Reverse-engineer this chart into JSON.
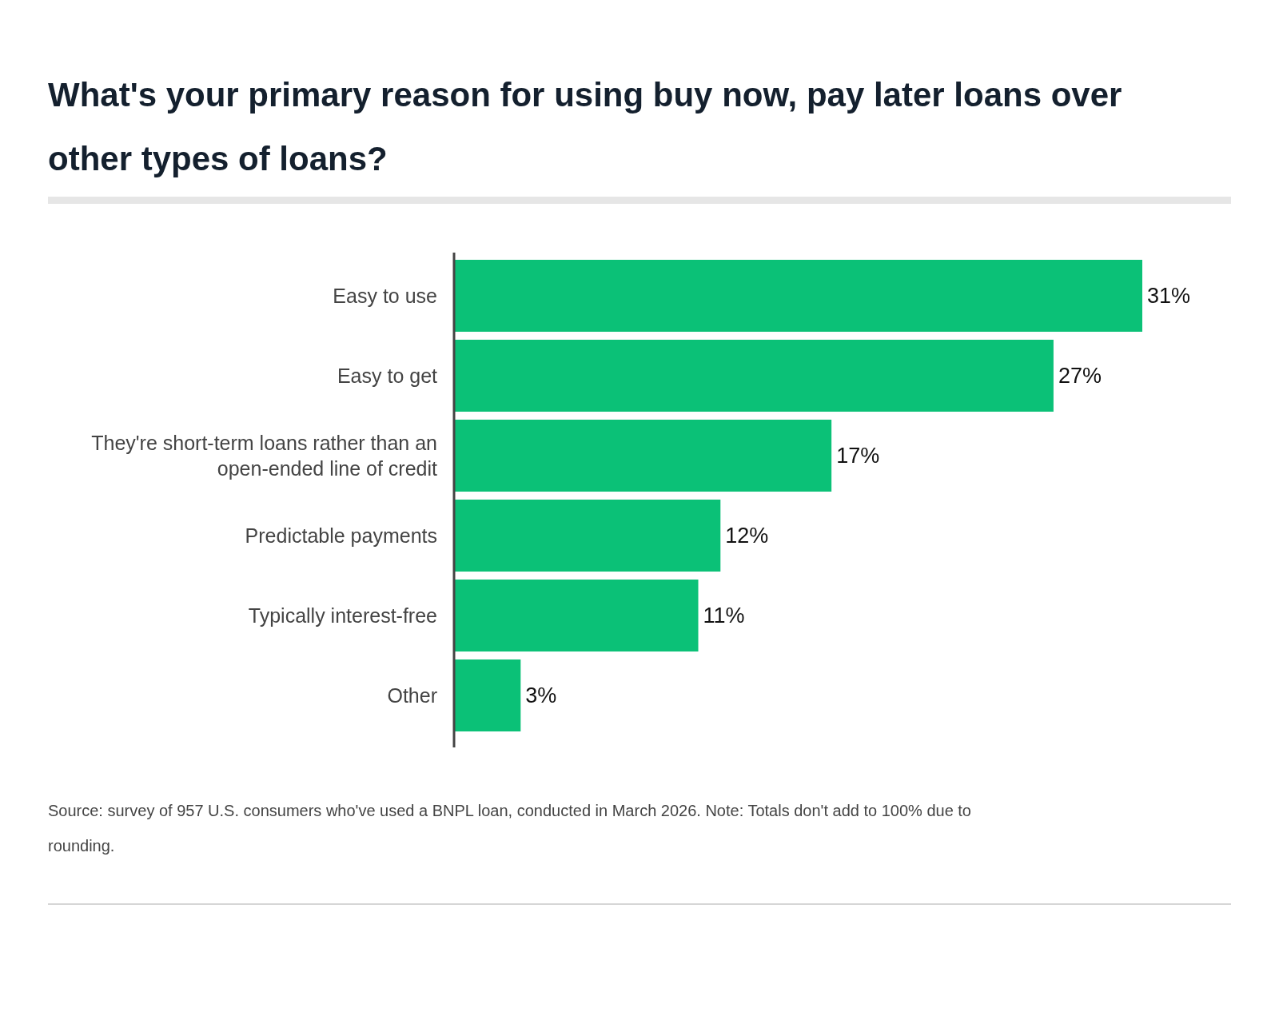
{
  "chart_data": {
    "type": "bar",
    "orientation": "horizontal",
    "title": "What's your primary reason for using buy now, pay later loans over other types of loans?",
    "categories": [
      "Easy to use",
      "Easy to get",
      "They're short-term loans rather than an open-ended line of credit",
      "Predictable payments",
      "Typically interest-free",
      "Other"
    ],
    "values": [
      31,
      27,
      17,
      12,
      11,
      3
    ],
    "value_labels": [
      "31%",
      "27%",
      "17%",
      "12%",
      "11%",
      "3%"
    ],
    "color": "#0bc177",
    "annotations": [
      "Source: survey of 957 U.S. consumers who've used a BNPL loan, conducted in March 2026. Note: Totals don't add to 100% due to rounding."
    ]
  }
}
